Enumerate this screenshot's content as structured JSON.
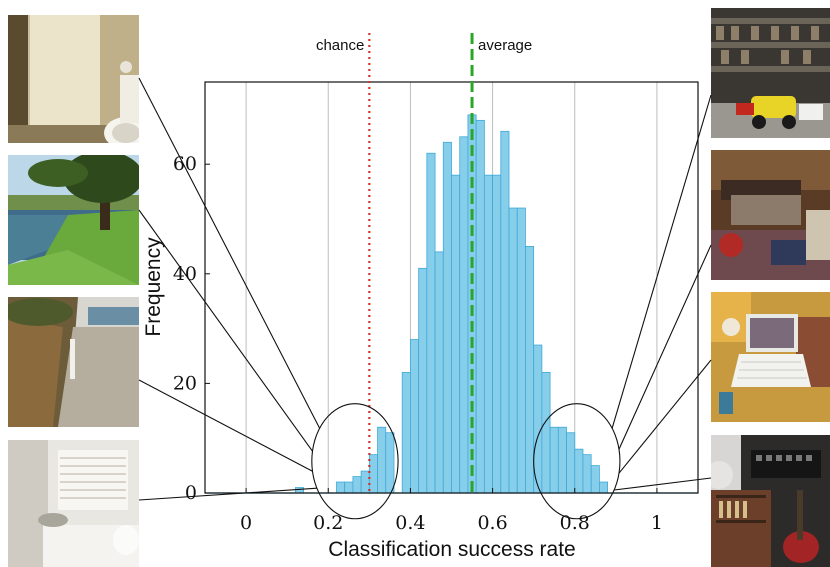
{
  "chart_data": {
    "type": "bar",
    "xlabel": "Classification success rate",
    "ylabel": "Frequency",
    "xlim": [
      -0.1,
      1.1
    ],
    "ylim": [
      0,
      75
    ],
    "x_ticks": [
      0,
      0.2,
      0.4,
      0.6,
      0.8,
      1
    ],
    "x_tick_labels": [
      "0",
      "0.2",
      "0.4",
      "0.6",
      "0.8",
      "1"
    ],
    "y_ticks": [
      0,
      20,
      40,
      60
    ],
    "y_tick_labels": [
      "0",
      "20",
      "40",
      "60"
    ],
    "grid": "vertical",
    "bin_width": 0.02,
    "bins": [
      {
        "x": 0.13,
        "count": 1
      },
      {
        "x": 0.23,
        "count": 2
      },
      {
        "x": 0.25,
        "count": 2
      },
      {
        "x": 0.27,
        "count": 3
      },
      {
        "x": 0.29,
        "count": 4
      },
      {
        "x": 0.31,
        "count": 7
      },
      {
        "x": 0.33,
        "count": 12
      },
      {
        "x": 0.35,
        "count": 11
      },
      {
        "x": 0.37,
        "count": 0
      },
      {
        "x": 0.39,
        "count": 22
      },
      {
        "x": 0.41,
        "count": 28
      },
      {
        "x": 0.43,
        "count": 41
      },
      {
        "x": 0.45,
        "count": 62
      },
      {
        "x": 0.47,
        "count": 44
      },
      {
        "x": 0.49,
        "count": 64
      },
      {
        "x": 0.51,
        "count": 58
      },
      {
        "x": 0.53,
        "count": 65
      },
      {
        "x": 0.55,
        "count": 69
      },
      {
        "x": 0.57,
        "count": 68
      },
      {
        "x": 0.59,
        "count": 58
      },
      {
        "x": 0.61,
        "count": 58
      },
      {
        "x": 0.63,
        "count": 66
      },
      {
        "x": 0.65,
        "count": 52
      },
      {
        "x": 0.67,
        "count": 52
      },
      {
        "x": 0.69,
        "count": 45
      },
      {
        "x": 0.71,
        "count": 27
      },
      {
        "x": 0.73,
        "count": 22
      },
      {
        "x": 0.75,
        "count": 12
      },
      {
        "x": 0.77,
        "count": 12
      },
      {
        "x": 0.79,
        "count": 11
      },
      {
        "x": 0.81,
        "count": 8
      },
      {
        "x": 0.83,
        "count": 7
      },
      {
        "x": 0.85,
        "count": 5
      },
      {
        "x": 0.87,
        "count": 2
      }
    ],
    "bar_color": "#87CEEB",
    "bar_edge_color": "#3FA9D8",
    "reference_lines": [
      {
        "label": "chance",
        "x": 0.3,
        "style": "dotted",
        "color": "#D0342C"
      },
      {
        "label": "average",
        "x": 0.55,
        "style": "dashed",
        "color": "#2AA52A"
      }
    ],
    "highlight_regions": [
      {
        "name": "low-success",
        "cx": 0.265,
        "cy": 5.8,
        "rx": 0.105,
        "ry": 10.5
      },
      {
        "name": "high-success",
        "cx": 0.805,
        "cy": 5.8,
        "rx": 0.105,
        "ry": 10.5
      }
    ]
  },
  "thumbnails": {
    "left": [
      {
        "name": "bathroom-toilet-thumbnail",
        "scene": "toilet"
      },
      {
        "name": "lake-tree-thumbnail",
        "scene": "lake"
      },
      {
        "name": "gravel-path-thumbnail",
        "scene": "path"
      },
      {
        "name": "bathtub-thumbnail",
        "scene": "bathtub"
      }
    ],
    "right": [
      {
        "name": "toy-store-thumbnail",
        "scene": "store"
      },
      {
        "name": "cluttered-room-thumbnail",
        "scene": "clutter"
      },
      {
        "name": "laptop-desk-thumbnail",
        "scene": "laptop"
      },
      {
        "name": "music-studio-thumbnail",
        "scene": "studio"
      }
    ]
  }
}
